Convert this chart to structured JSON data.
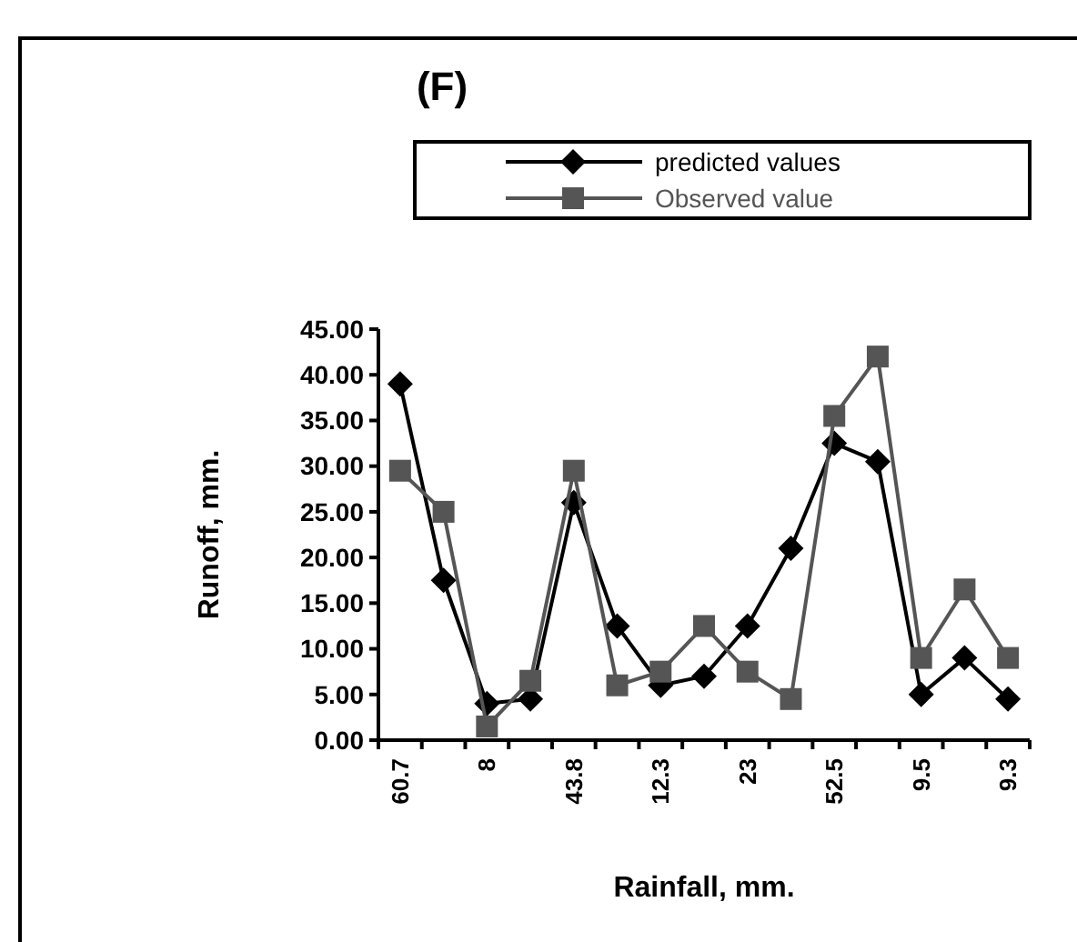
{
  "chart_data": {
    "type": "line",
    "title": "(F)",
    "xlabel": "Rainfall, mm.",
    "ylabel": "Runoff, mm.",
    "categories": [
      "60.7",
      null,
      "8",
      null,
      "43.8",
      null,
      "12.3",
      null,
      "23",
      null,
      "52.5",
      null,
      "9.5",
      null,
      "9.3"
    ],
    "series": [
      {
        "name": "predicted values",
        "color": "#000000",
        "marker": "diamond",
        "values": [
          39,
          17.5,
          4,
          4.5,
          26,
          12.5,
          6,
          7,
          12.5,
          21,
          32.5,
          30.5,
          5,
          9,
          4.5
        ]
      },
      {
        "name": "Observed value",
        "color": "#555555",
        "marker": "square",
        "values": [
          29.5,
          25,
          1.5,
          6.5,
          29.5,
          6,
          7.5,
          12.5,
          7.5,
          4.5,
          35.5,
          42,
          9,
          16.5,
          9
        ]
      }
    ],
    "ylim": [
      0,
      45
    ],
    "yticks": [
      {
        "value": 0,
        "label": "0.00"
      },
      {
        "value": 5,
        "label": "5.00"
      },
      {
        "value": 10,
        "label": "10.00"
      },
      {
        "value": 15,
        "label": "15.00"
      },
      {
        "value": 20,
        "label": "20.00"
      },
      {
        "value": 25,
        "label": "25.00"
      },
      {
        "value": 30,
        "label": "30.00"
      },
      {
        "value": 35,
        "label": "35.00"
      },
      {
        "value": 40,
        "label": "40.00"
      },
      {
        "value": 45,
        "label": "45.00"
      }
    ],
    "legend": "top right",
    "grid": false,
    "line_style": "solid"
  }
}
